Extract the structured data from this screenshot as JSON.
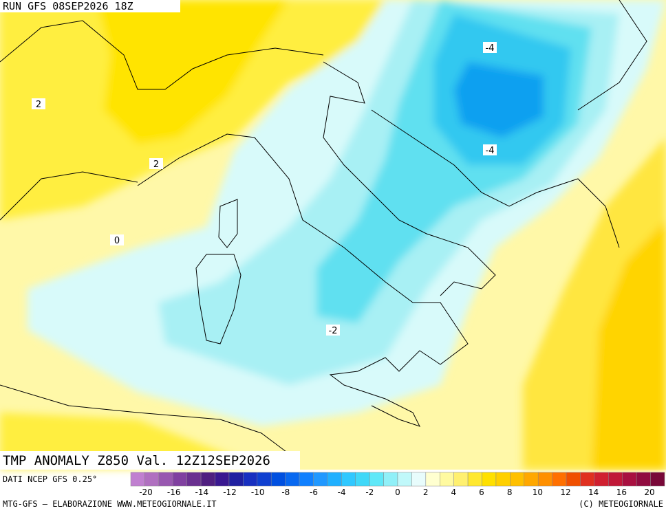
{
  "header": {
    "run": "RUN GFS 08SEP2026 18Z"
  },
  "map": {
    "contour_labels": [
      {
        "text": "-4"
      },
      {
        "text": "-4"
      },
      {
        "text": "2"
      },
      {
        "text": "2"
      },
      {
        "text": "0"
      },
      {
        "text": "-2"
      }
    ]
  },
  "footer": {
    "title": "TMP ANOMALY Z850 Val. 12Z12SEP2026",
    "source": "DATI NCEP GFS 0.25°",
    "credit": "MTG-GFS — ELABORAZIONE WWW.METEOGIORNALE.IT",
    "copyright": "(C) METEOGIORNALE"
  },
  "colorbar": {
    "labels": [
      -20,
      -16,
      -14,
      -12,
      -10,
      -8,
      -6,
      -4,
      -2,
      0,
      2,
      4,
      6,
      8,
      10,
      12,
      14,
      16,
      20
    ],
    "colors": [
      "#c080d0",
      "#b070c0",
      "#9858b0",
      "#8040a0",
      "#6a3090",
      "#502080",
      "#3a1890",
      "#2020a0",
      "#1830c0",
      "#1040d0",
      "#0050e0",
      "#0868f0",
      "#1080ff",
      "#2098ff",
      "#20b0ff",
      "#30c8ff",
      "#40d8f8",
      "#60e8f8",
      "#90f0f8",
      "#c0f8fa",
      "#e8fcfc",
      "#ffffd0",
      "#fffaa0",
      "#fff070",
      "#ffe830",
      "#ffe000",
      "#ffd000",
      "#ffc000",
      "#ffa800",
      "#ff9000",
      "#ff7000",
      "#f05000",
      "#e03020",
      "#d02030",
      "#c01838",
      "#a81040",
      "#900c40",
      "#780838"
    ]
  }
}
